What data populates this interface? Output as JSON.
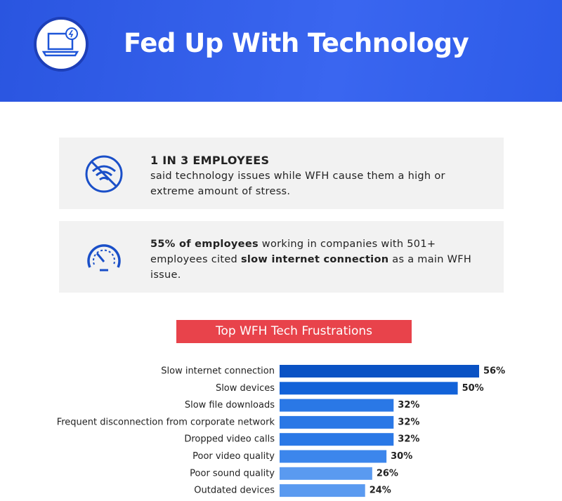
{
  "header": {
    "title": "Fed Up With Technology"
  },
  "stats": [
    {
      "parts": [
        "1 IN 3 EMPLOYEES",
        "said technology issues while WFH cause them a high or extreme amount of stress."
      ]
    },
    {
      "parts": [
        "55% of employees",
        " working in companies with 501+ employees cited ",
        "slow internet connection",
        " as a main WFH issue."
      ]
    }
  ],
  "chart_data": {
    "type": "hbar",
    "title": "Top WFH Tech Frustrations",
    "categories": [
      "Slow internet connection",
      "Slow devices",
      "Slow file downloads",
      "Frequent disconnection from corporate network",
      "Dropped video calls",
      "Poor video quality",
      "Poor sound quality",
      "Outdated devices"
    ],
    "values": [
      56,
      50,
      32,
      32,
      32,
      30,
      26,
      24
    ],
    "value_labels": [
      "56%",
      "50%",
      "32%",
      "32%",
      "32%",
      "30%",
      "26%",
      "24%"
    ],
    "colors": [
      "#0a52c4",
      "#1262d8",
      "#2a78e6",
      "#2a78e6",
      "#2a78e6",
      "#3c86ec",
      "#5a9af0",
      "#5a9af0"
    ]
  }
}
